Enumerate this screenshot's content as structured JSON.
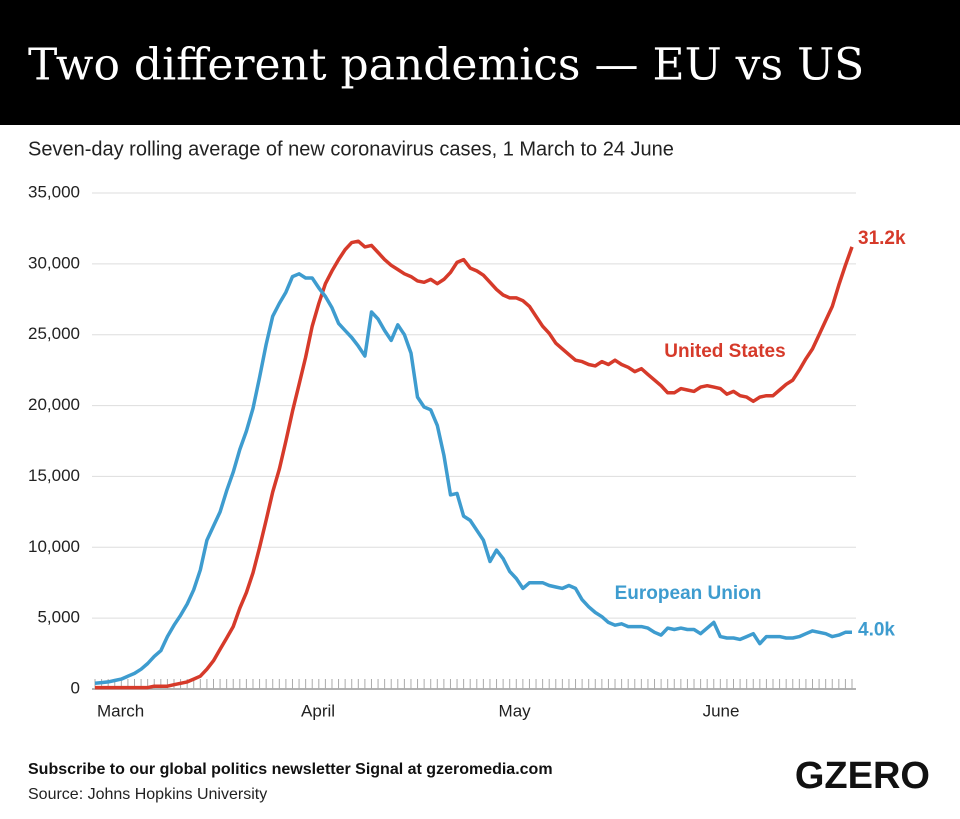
{
  "chart_data": {
    "type": "line",
    "title": "Two different pandemics — EU vs US",
    "subtitle": "Seven-day rolling average of new coronavirus cases, 1 March to 24 June",
    "subscribe": "Subscribe to our global politics newsletter Signal at gzeromedia.com",
    "source": "Source: Johns Hopkins University",
    "logo": "GZERO",
    "categories": [
      "March",
      null,
      null,
      null,
      null,
      null,
      null,
      null,
      null,
      null,
      null,
      null,
      null,
      null,
      null,
      null,
      null,
      null,
      null,
      null,
      null,
      null,
      null,
      null,
      null,
      null,
      null,
      null,
      null,
      null,
      null,
      "April",
      null,
      null,
      null,
      null,
      null,
      null,
      null,
      null,
      null,
      null,
      null,
      null,
      null,
      null,
      null,
      null,
      null,
      null,
      null,
      null,
      null,
      null,
      null,
      null,
      null,
      null,
      null,
      null,
      null,
      "May",
      null,
      null,
      null,
      null,
      null,
      null,
      null,
      null,
      null,
      null,
      null,
      null,
      null,
      null,
      null,
      null,
      null,
      null,
      null,
      null,
      null,
      null,
      null,
      null,
      null,
      null,
      null,
      null,
      null,
      null,
      "June",
      null,
      null,
      null,
      null,
      null,
      null,
      null,
      null,
      null,
      null,
      null,
      null,
      null,
      null,
      null,
      null,
      null,
      null,
      null,
      null,
      null,
      null,
      null
    ],
    "series": [
      {
        "name": "United States",
        "color": "#d63a2a",
        "end_label": "31.2k",
        "values": [
          100,
          100,
          100,
          100,
          100,
          100,
          100,
          100,
          100,
          200,
          200,
          200,
          300,
          400,
          500,
          700,
          900,
          1400,
          2000,
          2800,
          3600,
          4400,
          5700,
          6800,
          8200,
          10000,
          11900,
          13900,
          15500,
          17500,
          19600,
          21500,
          23400,
          25600,
          27200,
          28600,
          29500,
          30300,
          31000,
          31500,
          31600,
          31200,
          31300,
          30800,
          30300,
          29900,
          29600,
          29300,
          29100,
          28800,
          28700,
          28900,
          28600,
          28900,
          29400,
          30100,
          30300,
          29700,
          29500,
          29200,
          28700,
          28200,
          27800,
          27600,
          27600,
          27400,
          27000,
          26300,
          25600,
          25100,
          24400,
          24000,
          23600,
          23200,
          23100,
          22900,
          22800,
          23100,
          22900,
          23200,
          22900,
          22700,
          22400,
          22600,
          22200,
          21800,
          21400,
          20900,
          20900,
          21200,
          21100,
          21000,
          21300,
          21400,
          21300,
          21200,
          20800,
          21000,
          20700,
          20600,
          20300,
          20600,
          20700,
          20700,
          21100,
          21500,
          21800,
          22500,
          23300,
          24000,
          25000,
          26000,
          27000,
          28500,
          29900,
          31200
        ]
      },
      {
        "name": "European Union",
        "color": "#3e9ccf",
        "end_label": "4.0k",
        "values": [
          400,
          450,
          500,
          600,
          700,
          900,
          1100,
          1400,
          1800,
          2300,
          2700,
          3700,
          4500,
          5200,
          6000,
          7000,
          8400,
          10500,
          11500,
          12500,
          14000,
          15300,
          16900,
          18200,
          19800,
          22000,
          24300,
          26300,
          27200,
          28000,
          29100,
          29300,
          29000,
          29000,
          28300,
          27700,
          26900,
          25800,
          25300,
          24800,
          24200,
          23500,
          26600,
          26100,
          25300,
          24600,
          25700,
          25000,
          23700,
          20600,
          19900,
          19700,
          18600,
          16500,
          13700,
          13800,
          12200,
          11900,
          11200,
          10500,
          9000,
          9800,
          9200,
          8300,
          7800,
          7100,
          7500,
          7500,
          7500,
          7300,
          7200,
          7100,
          7300,
          7100,
          6300,
          5800,
          5400,
          5100,
          4700,
          4500,
          4600,
          4400,
          4400,
          4400,
          4300,
          4000,
          3800,
          4300,
          4200,
          4300,
          4200,
          4200,
          3900,
          4300,
          4700,
          3700,
          3600,
          3600,
          3500,
          3700,
          3900,
          3200,
          3700,
          3700,
          3700,
          3600,
          3600,
          3700,
          3900,
          4100,
          4000,
          3900,
          3700,
          3800,
          4000,
          4000
        ]
      }
    ],
    "ylim": [
      0,
      35000
    ],
    "yticks": [
      0,
      {
        "value": 5000,
        "label": "5,000"
      },
      {
        "value": 10000,
        "label": "10,000"
      },
      {
        "value": 15000,
        "label": "15,000"
      },
      {
        "value": 20000,
        "label": "20,000"
      },
      {
        "value": 25000,
        "label": "25,000"
      },
      {
        "value": 30000,
        "label": "30,000"
      },
      {
        "value": 35000,
        "label": "35,000"
      }
    ],
    "grid": true
  }
}
